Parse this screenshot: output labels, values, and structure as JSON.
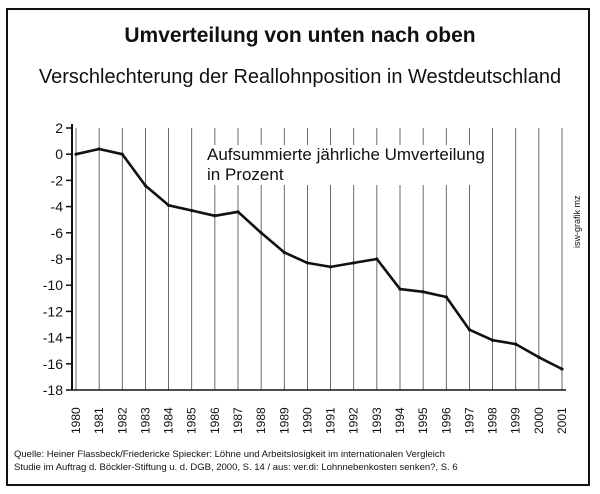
{
  "header": {
    "title": "Umverteilung von unten nach oben",
    "subtitle": "Verschlechterung der Reallohnposition in Westdeutschland"
  },
  "annotation": {
    "line1": "Aufsummierte jährliche Umverteilung",
    "line2": "in Prozent"
  },
  "credit": "isw-grafik mz",
  "source": {
    "line1": "Quelle: Heiner Flassbeck/Friedericke Spiecker: Löhne und Arbeitslosigkeit im internationalen Vergleich",
    "line2": "Studie im Auftrag d. Böckler-Stiftung u. d. DGB, 2000, S. 14 / aus: ver.di: Lohnnebenkosten senken?, S. 6"
  },
  "chart_data": {
    "type": "line",
    "title": "Umverteilung von unten nach oben",
    "subtitle": "Verschlechterung der Reallohnposition in Westdeutschland",
    "xlabel": "",
    "ylabel": "",
    "x": [
      "1980",
      "1981",
      "1982",
      "1983",
      "1984",
      "1985",
      "1986",
      "1987",
      "1988",
      "1989",
      "1990",
      "1991",
      "1992",
      "1993",
      "1994",
      "1995",
      "1996",
      "1997",
      "1998",
      "1999",
      "2000",
      "2001"
    ],
    "series": [
      {
        "values": [
          0,
          0.4,
          0,
          -2.4,
          -3.9,
          -4.3,
          -4.7,
          -4.4,
          -6.0,
          -7.5,
          -8.3,
          -8.6,
          -8.3,
          -8.0,
          -10.3,
          -10.5,
          -10.9,
          -13.4,
          -14.2,
          -14.5,
          -15.5,
          -16.4
        ]
      }
    ],
    "yticks": [
      2,
      0,
      -2,
      -4,
      -6,
      -8,
      -10,
      -12,
      -14,
      -16,
      -18
    ],
    "ylim": [
      -18,
      2
    ],
    "grid": "vertical",
    "color": "#111111"
  }
}
